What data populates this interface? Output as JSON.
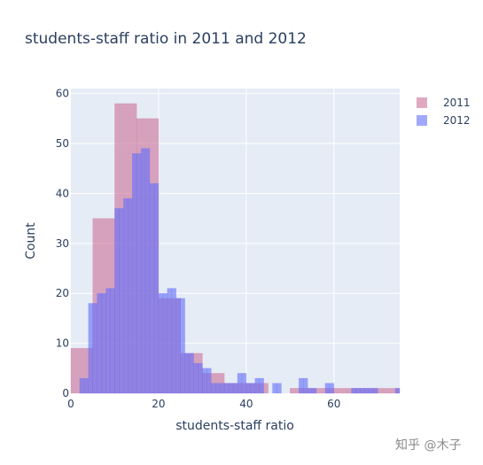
{
  "chart_data": {
    "type": "bar",
    "barmode": "overlay",
    "title": "students-staff ratio in 2011 and 2012",
    "xlabel": "students-staff ratio",
    "ylabel": "Count",
    "xlim": [
      0,
      75
    ],
    "ylim": [
      0,
      61
    ],
    "x_ticks": [
      0,
      20,
      40,
      60
    ],
    "y_ticks": [
      0,
      10,
      20,
      30,
      40,
      50,
      60
    ],
    "grid": true,
    "legend_position": "top-right",
    "series": [
      {
        "name": "2011",
        "color": "#cc6f98",
        "opacity": 0.6,
        "bin_width": 5,
        "bin_starts": [
          0,
          5,
          10,
          15,
          20,
          25,
          30,
          35,
          40,
          45,
          50,
          55,
          60,
          65,
          70
        ],
        "values": [
          9,
          35,
          58,
          55,
          19,
          8,
          4,
          2,
          2,
          0,
          1,
          1,
          1,
          1,
          1
        ]
      },
      {
        "name": "2012",
        "color": "#636efa",
        "opacity": 0.6,
        "bin_width": 1,
        "bin_starts": [
          2,
          3,
          4,
          5,
          6,
          7,
          8,
          9,
          10,
          11,
          12,
          13,
          14,
          15,
          16,
          17,
          18,
          19,
          20,
          21,
          22,
          23,
          24,
          25,
          26,
          27,
          28,
          29,
          30,
          31,
          32,
          33,
          34,
          35,
          36,
          37,
          38,
          39,
          40,
          41,
          42,
          43,
          44,
          45,
          46,
          47,
          48,
          49,
          50,
          51,
          52,
          53,
          54,
          55,
          56,
          57,
          58,
          59,
          60,
          61,
          62,
          63,
          64,
          65,
          66,
          67,
          68,
          69,
          70,
          71,
          72,
          73,
          74
        ],
        "values": [
          3,
          3,
          18,
          18,
          20,
          20,
          21,
          21,
          37,
          37,
          39,
          39,
          48,
          48,
          49,
          49,
          42,
          42,
          20,
          20,
          21,
          21,
          19,
          19,
          8,
          8,
          6,
          6,
          5,
          5,
          2,
          2,
          2,
          2,
          2,
          2,
          4,
          4,
          2,
          2,
          3,
          3,
          0,
          0,
          2,
          2,
          0,
          0,
          0,
          0,
          3,
          3,
          1,
          1,
          0,
          0,
          2,
          2,
          0,
          0,
          0,
          0,
          1,
          1,
          1,
          1,
          1,
          1,
          0,
          0,
          0,
          0,
          1
        ]
      }
    ]
  },
  "watermark": "知乎 @木子"
}
